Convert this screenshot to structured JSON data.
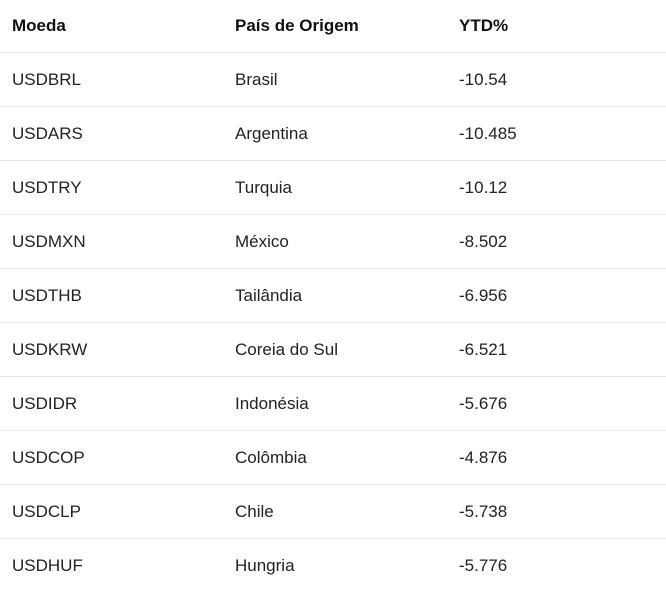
{
  "table": {
    "headers": [
      "Moeda",
      "País de Origem",
      "YTD%"
    ],
    "rows": [
      [
        "USDBRL",
        "Brasil",
        "-10.54"
      ],
      [
        "USDARS",
        "Argentina",
        "-10.485"
      ],
      [
        "USDTRY",
        "Turquia",
        "-10.12"
      ],
      [
        "USDMXN",
        "México",
        "-8.502"
      ],
      [
        "USDTHB",
        "Tailândia",
        "-6.956"
      ],
      [
        "USDKRW",
        "Coreia do Sul",
        "-6.521"
      ],
      [
        "USDIDR",
        "Indonésia",
        "-5.676"
      ],
      [
        "USDCOP",
        "Colômbia",
        "-4.876"
      ],
      [
        "USDCLP",
        "Chile",
        "-5.738"
      ],
      [
        "USDHUF",
        "Hungria",
        "-5.776"
      ]
    ]
  }
}
